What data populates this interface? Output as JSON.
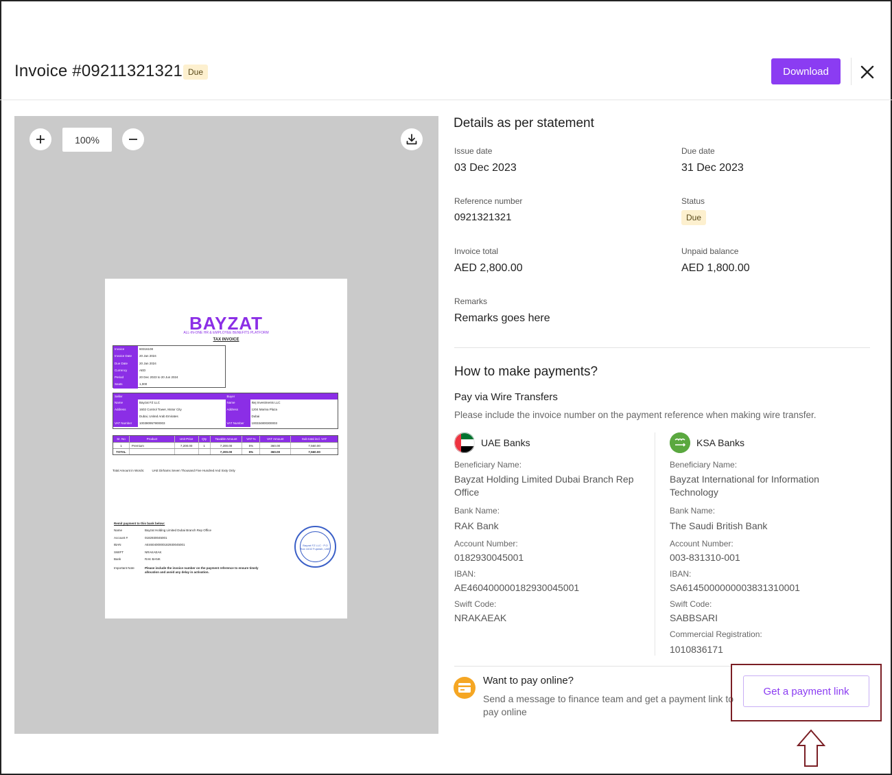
{
  "header": {
    "title": "Invoice #09211321321",
    "status_badge": "Due",
    "download_label": "Download"
  },
  "viewer": {
    "zoom_level": "100%"
  },
  "invoice_doc": {
    "logo": "BAYZAT",
    "tagline": "ALL-IN-ONE HR & EMPLOYEE BENEFITS PLATFORM",
    "doc_title": "TAX INVOICE",
    "meta": [
      {
        "k": "Invoice",
        "v": "60316108"
      },
      {
        "k": "Invoice Date",
        "v": "20 Jan 2024"
      },
      {
        "k": "Due Date",
        "v": "20 Jan 2024"
      },
      {
        "k": "Currency",
        "v": "AED"
      },
      {
        "k": "Period",
        "v": "20 Dec 2023 to 20 Jun 2024"
      },
      {
        "k": "Seats",
        "v": "1,000"
      }
    ],
    "seller_label": "Seller",
    "buyer_label": "Buyer",
    "seller": [
      {
        "k": "Name",
        "v": "Bayzat FZ LLC"
      },
      {
        "k": "Address",
        "v": "1602 Control Tower, Motor City"
      },
      {
        "k": "",
        "v": "Dubai, United Arab Emirates"
      },
      {
        "k": "VAT Number",
        "v": "100380957900003"
      }
    ],
    "buyer": [
      {
        "k": "Name",
        "v": "Ikej Investments LLC"
      },
      {
        "k": "Address",
        "v": "1204 Marina Plaza"
      },
      {
        "k": "",
        "v": "Dubai"
      },
      {
        "k": "VAT Number",
        "v": "100334800300003"
      }
    ],
    "table_headers": [
      "Sr. No",
      "Product",
      "Unit Price",
      "Qty",
      "Taxable Amount",
      "VAT %",
      "VAT Amount",
      "Sub total incl. VAT"
    ],
    "table_rows": [
      [
        "1",
        "Premium",
        "7,200.00",
        "1",
        "7,200.00",
        "5%",
        "360.00",
        "7,560.00"
      ],
      [
        "TOTAL",
        "",
        "",
        "",
        "7,200.00",
        "5%",
        "360.00",
        "7,560.00"
      ]
    ],
    "total_words_label": "Total Amount in Words:",
    "total_words": "UAE Dirhams Seven Thousand Five Hundred And Sixty Only",
    "remit_title": "Remit payment to this bank below:",
    "remit": [
      {
        "k": "Name",
        "v": "Bayzat Holding Limited Dubai Branch Rep Office"
      },
      {
        "k": "Account #",
        "v": "0182930045001"
      },
      {
        "k": "IBAN",
        "v": "AE460400000182930045001"
      },
      {
        "k": "SWIFT",
        "v": "NRAKAEAK"
      },
      {
        "k": "Bank",
        "v": "RAK BANK"
      }
    ],
    "important_label": "Important Note",
    "important_note": "Please include the invoice number on the payment reference to ensure timely allocation and avoid any delay in activation.",
    "stamp_text": "Bayzat FZ LLC · P.O Box 4432 Fujairah, UAE"
  },
  "details": {
    "title": "Details as per statement",
    "issue_date_label": "Issue date",
    "issue_date": "03 Dec 2023",
    "due_date_label": "Due date",
    "due_date": "31 Dec 2023",
    "reference_label": "Reference number",
    "reference": "0921321321",
    "status_label": "Status",
    "status": "Due",
    "invoice_total_label": "Invoice total",
    "invoice_total": "AED 2,800.00",
    "unpaid_label": "Unpaid balance",
    "unpaid": "AED 1,800.00",
    "remarks_label": "Remarks",
    "remarks": "Remarks goes here"
  },
  "payments": {
    "title": "How to make payments?",
    "subtitle": "Pay via Wire Transfers",
    "note": "Please include the invoice number on the payment reference when making wire transfer.",
    "uae": {
      "title": "UAE Banks",
      "beneficiary_label": "Beneficiary Name:",
      "beneficiary": "Bayzat Holding Limited Dubai Branch Rep Office",
      "bank_label": "Bank Name:",
      "bank": "RAK Bank",
      "account_label": "Account Number:",
      "account": "0182930045001",
      "iban_label": "IBAN:",
      "iban": "AE460400000182930045001",
      "swift_label": "Swift Code:",
      "swift": "NRAKAEAK"
    },
    "ksa": {
      "title": "KSA Banks",
      "beneficiary_label": "Beneficiary Name:",
      "beneficiary": "Bayzat International for Information Technology",
      "bank_label": "Bank Name:",
      "bank": "The Saudi British Bank",
      "account_label": "Account Number:",
      "account": "003-831310-001",
      "iban_label": "IBAN:",
      "iban": "SA6145000000003831310001",
      "swift_label": "Swift Code:",
      "swift": "SABBSARI",
      "cr_label": "Commercial Registration:",
      "cr": "1010836171"
    }
  },
  "online": {
    "title": "Want to pay online?",
    "description": "Send a message to finance team and get a payment link to pay online",
    "button_label": "Get a payment link"
  },
  "colors": {
    "accent": "#8b3cf2",
    "badge_bg": "#fdf0cf",
    "highlight_border": "#7a1e24"
  }
}
